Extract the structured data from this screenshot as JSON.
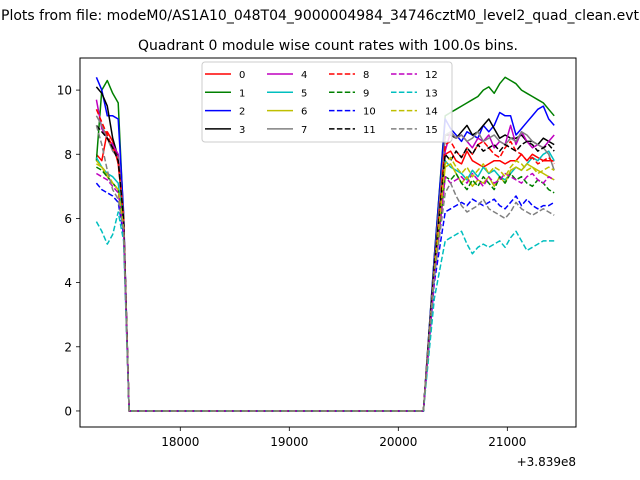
{
  "figure": {
    "suptitle": "Plots from file: modeM0/AS1A10_048T04_9000004984_34746cztM0_level2_quad_clean.evt",
    "offset_label": "+3.839e8"
  },
  "chart_data": {
    "type": "line",
    "title": "Quadrant 0 module wise count rates with 100.0s bins.",
    "xlabel": "",
    "ylabel": "",
    "xlim": [
      17080,
      21630
    ],
    "ylim": [
      -0.5,
      11.0
    ],
    "xticks": [
      18000,
      19000,
      20000,
      21000
    ],
    "xtick_labels": [
      "18000",
      "19000",
      "20000",
      "21000"
    ],
    "yticks": [
      0,
      2,
      4,
      6,
      8,
      10
    ],
    "ytick_labels": [
      "0",
      "2",
      "4",
      "6",
      "8",
      "10"
    ],
    "grid": false,
    "legend": {
      "placement": "top-center",
      "columns": 4
    },
    "x": [
      17230,
      17280,
      17330,
      17380,
      17430,
      17480,
      17530,
      20230,
      20330,
      20430,
      20480,
      20530,
      20580,
      20630,
      20680,
      20730,
      20780,
      20830,
      20880,
      20930,
      20980,
      21030,
      21080,
      21130,
      21180,
      21230,
      21280,
      21330,
      21380,
      21430
    ],
    "series": [
      {
        "name": "0",
        "color": "#ff0000",
        "dash": "solid",
        "values": [
          8.0,
          7.8,
          8.7,
          8.4,
          7.7,
          6.0,
          0,
          0,
          4.5,
          8.0,
          8.1,
          7.8,
          7.7,
          8.1,
          7.8,
          7.7,
          7.6,
          7.7,
          7.8,
          7.8,
          7.7,
          7.8,
          7.8,
          8.0,
          7.8,
          8.0,
          7.9,
          7.8,
          7.8,
          7.8
        ]
      },
      {
        "name": "1",
        "color": "#008000",
        "dash": "solid",
        "values": [
          7.8,
          10.0,
          10.3,
          9.9,
          9.6,
          6.0,
          0,
          0,
          4.8,
          9.2,
          9.3,
          9.4,
          9.5,
          9.6,
          9.7,
          9.8,
          10.0,
          10.1,
          9.9,
          10.2,
          10.4,
          10.3,
          10.2,
          10.0,
          9.9,
          9.8,
          9.7,
          9.6,
          9.4,
          9.2
        ]
      },
      {
        "name": "2",
        "color": "#0000ff",
        "dash": "solid",
        "values": [
          10.4,
          10.0,
          9.2,
          9.2,
          9.1,
          6.2,
          0,
          0,
          4.8,
          9.1,
          8.8,
          8.6,
          8.4,
          8.7,
          8.6,
          8.5,
          8.9,
          8.7,
          8.9,
          9.3,
          9.2,
          9.2,
          8.6,
          8.8,
          9.0,
          9.2,
          9.4,
          9.5,
          9.1,
          8.9
        ]
      },
      {
        "name": "3",
        "color": "#000000",
        "dash": "solid",
        "values": [
          10.1,
          9.9,
          9.5,
          8.5,
          7.9,
          6.0,
          0,
          0,
          4.6,
          8.6,
          8.6,
          8.5,
          8.7,
          8.9,
          8.6,
          8.7,
          8.9,
          9.1,
          8.8,
          8.5,
          8.6,
          8.5,
          8.5,
          8.6,
          8.4,
          8.4,
          8.3,
          8.5,
          8.4,
          8.3
        ]
      },
      {
        "name": "4",
        "color": "#bf00bf",
        "dash": "solid",
        "values": [
          9.7,
          8.8,
          8.5,
          8.3,
          8.0,
          6.1,
          0,
          0,
          4.5,
          8.1,
          8.7,
          8.5,
          8.6,
          8.4,
          8.2,
          8.5,
          8.4,
          8.6,
          8.2,
          8.4,
          8.3,
          8.9,
          8.3,
          8.7,
          8.4,
          8.2,
          8.3,
          8.2,
          8.4,
          8.6
        ]
      },
      {
        "name": "5",
        "color": "#00bfbf",
        "dash": "solid",
        "values": [
          7.9,
          7.6,
          7.4,
          7.3,
          7.1,
          5.8,
          0,
          0,
          4.2,
          7.8,
          7.6,
          7.5,
          7.4,
          7.2,
          7.5,
          7.3,
          7.6,
          7.4,
          7.5,
          7.3,
          7.2,
          7.4,
          7.6,
          7.5,
          7.7,
          7.9,
          7.8,
          8.0,
          8.1,
          7.8
        ]
      },
      {
        "name": "6",
        "color": "#bfbf00",
        "dash": "solid",
        "values": [
          7.7,
          7.6,
          7.3,
          7.1,
          6.9,
          5.7,
          0,
          0,
          4.3,
          7.6,
          7.7,
          7.4,
          7.1,
          7.3,
          7.0,
          7.2,
          7.1,
          7.3,
          7.0,
          7.3,
          7.1,
          7.5,
          7.6,
          7.5,
          7.7,
          7.6,
          7.5,
          7.4,
          7.3,
          7.2
        ]
      },
      {
        "name": "7",
        "color": "#808080",
        "dash": "solid",
        "values": [
          9.2,
          8.9,
          8.5,
          8.1,
          7.9,
          6.1,
          0,
          0,
          4.6,
          8.6,
          8.7,
          8.5,
          8.6,
          8.4,
          8.5,
          8.7,
          8.4,
          8.5,
          8.6,
          8.4,
          8.3,
          8.5,
          8.4,
          8.7,
          8.6,
          8.4,
          8.3,
          8.2,
          8.0,
          7.5
        ]
      },
      {
        "name": "8",
        "color": "#ff0000",
        "dash": "dashed",
        "values": [
          9.4,
          9.0,
          8.6,
          8.2,
          7.8,
          6.0,
          0,
          0,
          4.4,
          8.3,
          8.4,
          8.1,
          7.9,
          8.2,
          8.0,
          8.3,
          8.4,
          8.2,
          8.0,
          7.9,
          8.2,
          8.4,
          8.1,
          8.0,
          7.8,
          7.9,
          7.7,
          7.8,
          7.9,
          7.7
        ]
      },
      {
        "name": "9",
        "color": "#008000",
        "dash": "dashed",
        "values": [
          7.6,
          7.5,
          7.3,
          7.1,
          6.9,
          5.7,
          0,
          0,
          4.2,
          7.3,
          7.2,
          7.4,
          7.1,
          6.9,
          7.2,
          7.0,
          7.3,
          7.1,
          6.9,
          7.3,
          7.1,
          7.4,
          7.2,
          7.3,
          7.1,
          7.0,
          7.2,
          7.1,
          6.9,
          6.8
        ]
      },
      {
        "name": "10",
        "color": "#0000ff",
        "dash": "dashed",
        "values": [
          7.1,
          6.9,
          6.8,
          6.7,
          6.5,
          5.5,
          0,
          0,
          4.0,
          6.2,
          6.3,
          6.4,
          6.5,
          6.4,
          6.6,
          6.5,
          6.4,
          6.5,
          6.6,
          6.4,
          6.3,
          6.5,
          6.7,
          6.4,
          6.6,
          6.4,
          6.3,
          6.4,
          6.4,
          6.5
        ]
      },
      {
        "name": "11",
        "color": "#000000",
        "dash": "dashed",
        "values": [
          8.9,
          8.7,
          8.5,
          8.2,
          7.8,
          6.0,
          0,
          0,
          4.5,
          8.0,
          7.8,
          8.1,
          7.9,
          8.2,
          8.0,
          8.3,
          8.1,
          8.2,
          8.3,
          8.1,
          8.3,
          8.2,
          8.1,
          8.3,
          8.4,
          8.3,
          8.1,
          8.2,
          8.3,
          8.1
        ]
      },
      {
        "name": "12",
        "color": "#bf00bf",
        "dash": "dashed",
        "values": [
          7.4,
          7.3,
          7.2,
          7.0,
          6.8,
          5.6,
          0,
          0,
          4.1,
          7.3,
          7.1,
          7.2,
          7.3,
          7.1,
          7.4,
          7.2,
          7.0,
          7.3,
          7.1,
          7.2,
          7.4,
          7.3,
          7.2,
          7.1,
          7.3,
          7.4,
          7.2,
          7.1,
          7.3,
          7.2
        ]
      },
      {
        "name": "13",
        "color": "#00bfbf",
        "dash": "dashed",
        "values": [
          5.9,
          5.6,
          5.2,
          5.5,
          6.2,
          5.3,
          0,
          0,
          3.5,
          5.3,
          5.4,
          5.5,
          5.6,
          5.2,
          4.9,
          5.1,
          5.2,
          5.1,
          5.2,
          5.3,
          5.1,
          5.4,
          5.6,
          5.3,
          5.0,
          5.1,
          5.2,
          5.3,
          5.3,
          5.3
        ]
      },
      {
        "name": "14",
        "color": "#bfbf00",
        "dash": "dashed",
        "values": [
          7.8,
          7.6,
          7.4,
          7.1,
          6.9,
          5.7,
          0,
          0,
          4.3,
          7.7,
          7.9,
          7.6,
          7.4,
          7.6,
          7.3,
          7.5,
          7.7,
          7.4,
          7.6,
          7.5,
          7.3,
          7.6,
          7.8,
          7.7,
          7.5,
          7.6,
          7.4,
          7.5,
          7.6,
          7.5
        ]
      },
      {
        "name": "15",
        "color": "#808080",
        "dash": "dashed",
        "values": [
          8.9,
          8.3,
          7.5,
          6.9,
          6.6,
          5.6,
          0,
          0,
          4.2,
          6.8,
          7.1,
          6.7,
          6.4,
          6.2,
          6.3,
          6.4,
          6.6,
          6.3,
          6.2,
          6.1,
          6.0,
          6.2,
          6.5,
          6.3,
          6.2,
          6.1,
          6.2,
          6.3,
          6.2,
          6.1
        ]
      }
    ]
  }
}
